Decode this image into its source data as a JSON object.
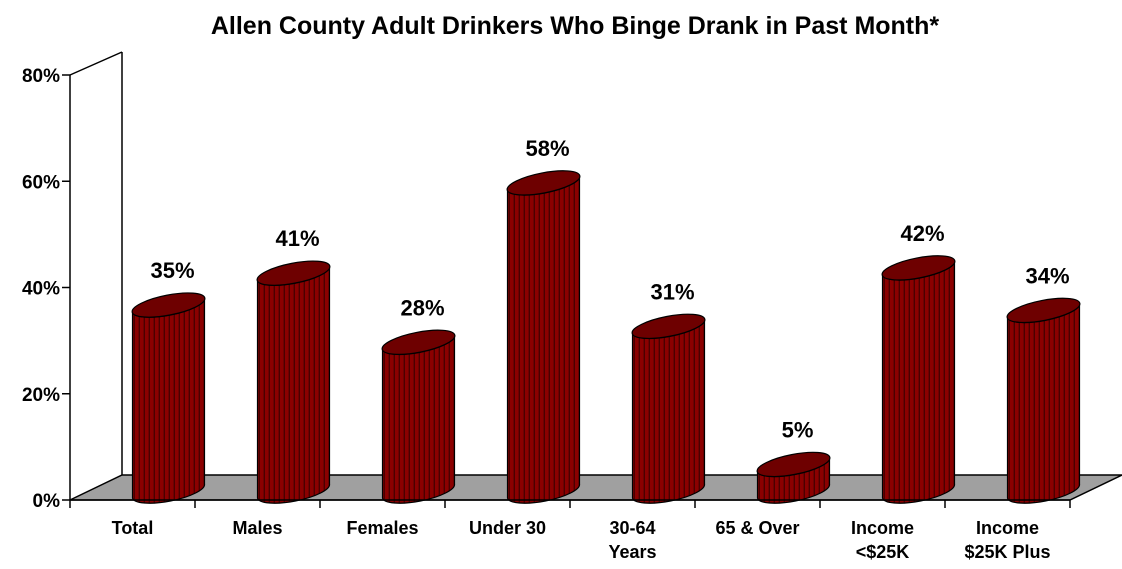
{
  "chart_data": {
    "type": "bar",
    "title": "Allen County Adult Drinkers Who Binge Drank in Past Month*",
    "categories": [
      [
        "Total"
      ],
      [
        "Males"
      ],
      [
        "Females"
      ],
      [
        "Under 30"
      ],
      [
        "30-64",
        "Years"
      ],
      [
        "65 & Over"
      ],
      [
        "Income",
        "<$25K"
      ],
      [
        "Income",
        "$25K Plus"
      ]
    ],
    "values": [
      35,
      41,
      28,
      58,
      31,
      5,
      42,
      34
    ],
    "data_labels": [
      "35%",
      "41%",
      "28%",
      "58%",
      "31%",
      "5%",
      "42%",
      "34%"
    ],
    "y_ticks": [
      "0%",
      "20%",
      "40%",
      "60%",
      "80%"
    ],
    "y_tick_values": [
      0,
      20,
      40,
      60,
      80
    ],
    "ylim": [
      0,
      80
    ],
    "xlabel": "",
    "ylabel": "",
    "grid": false,
    "legend": "none",
    "style": "3d-cylinder",
    "colors": {
      "bar_body": "#8b0000",
      "bar_stripe": "#4a0000",
      "bar_top": "#6e0000",
      "floor": "#a0a0a0",
      "axis": "#000000"
    }
  }
}
